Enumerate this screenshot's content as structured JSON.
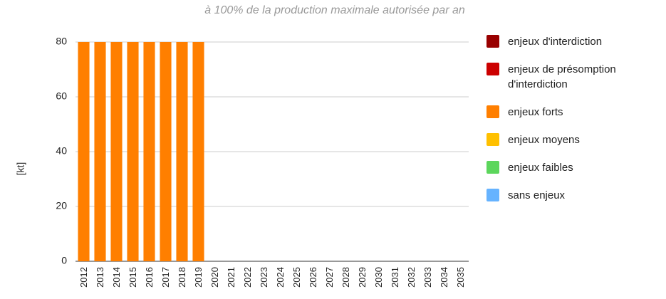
{
  "chart_data": {
    "type": "bar",
    "stacked": true,
    "title": "à 100% de la production maximale autorisée par an",
    "ylabel": "[kt]",
    "categories": [
      "2012",
      "2013",
      "2014",
      "2015",
      "2016",
      "2017",
      "2018",
      "2019",
      "2020",
      "2021",
      "2022",
      "2023",
      "2024",
      "2025",
      "2026",
      "2027",
      "2028",
      "2029",
      "2030",
      "2031",
      "2032",
      "2033",
      "2034",
      "2035"
    ],
    "series": [
      {
        "name": "enjeux d'interdiction",
        "color": "#990000",
        "values": [
          0,
          0,
          0,
          0,
          0,
          0,
          0,
          0,
          0,
          0,
          0,
          0,
          0,
          0,
          0,
          0,
          0,
          0,
          0,
          0,
          0,
          0,
          0,
          0
        ]
      },
      {
        "name": "enjeux de présomption d'interdiction",
        "color": "#cc0000",
        "values": [
          0,
          0,
          0,
          0,
          0,
          0,
          0,
          0,
          0,
          0,
          0,
          0,
          0,
          0,
          0,
          0,
          0,
          0,
          0,
          0,
          0,
          0,
          0,
          0
        ]
      },
      {
        "name": "enjeux forts",
        "color": "#ff7f00",
        "values": [
          80,
          80,
          80,
          80,
          80,
          80,
          80,
          80,
          0,
          0,
          0,
          0,
          0,
          0,
          0,
          0,
          0,
          0,
          0,
          0,
          0,
          0,
          0,
          0
        ]
      },
      {
        "name": "enjeux moyens",
        "color": "#ffc000",
        "values": [
          0,
          0,
          0,
          0,
          0,
          0,
          0,
          0,
          0,
          0,
          0,
          0,
          0,
          0,
          0,
          0,
          0,
          0,
          0,
          0,
          0,
          0,
          0,
          0
        ]
      },
      {
        "name": "enjeux faibles",
        "color": "#5cd65c",
        "values": [
          0,
          0,
          0,
          0,
          0,
          0,
          0,
          0,
          0,
          0,
          0,
          0,
          0,
          0,
          0,
          0,
          0,
          0,
          0,
          0,
          0,
          0,
          0,
          0
        ]
      },
      {
        "name": "sans enjeux",
        "color": "#66b3ff",
        "values": [
          0,
          0,
          0,
          0,
          0,
          0,
          0,
          0,
          0,
          0,
          0,
          0,
          0,
          0,
          0,
          0,
          0,
          0,
          0,
          0,
          0,
          0,
          0,
          0
        ]
      }
    ],
    "ylim": [
      0,
      80
    ],
    "yticks": [
      0,
      20,
      40,
      60,
      80
    ],
    "grid": true,
    "legend": "right"
  }
}
